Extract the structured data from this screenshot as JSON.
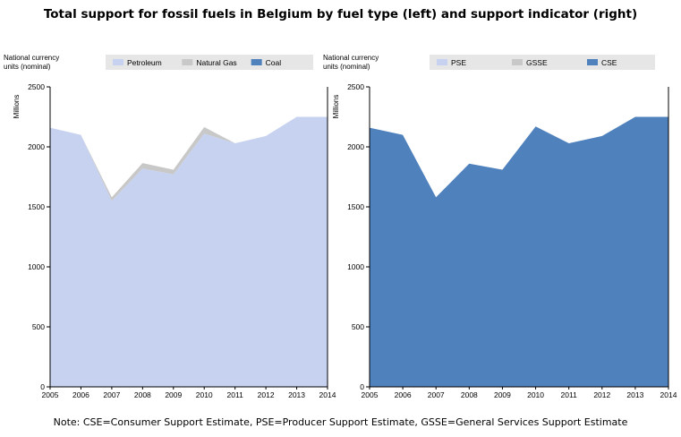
{
  "title": "Total support for fossil fuels in Belgium by fuel type (left) and support indicator (right)",
  "note": "Note: CSE=Consumer Support Estimate, PSE=Producer Support Estimate, GSSE=General Services Support Estimate",
  "colors": {
    "petroleum": "#c6d2f0",
    "natural_gas": "#c8c8c8",
    "coal": "#4f81bd",
    "pse": "#c6d2f0",
    "gsse": "#c8c8c8",
    "cse": "#4f81bd",
    "legend_bg": "#e6e6e6"
  },
  "chart_data": [
    {
      "type": "area",
      "ylabel_top": "National currency units (nominal)",
      "ylabel_side": "Millions",
      "ylim": [
        0,
        2500
      ],
      "yticks": [
        "0",
        "500",
        "1000",
        "1500",
        "2000",
        "2500"
      ],
      "x": [
        "2005",
        "2006",
        "2007",
        "2008",
        "2009",
        "2010",
        "2011",
        "2012",
        "2013",
        "2014"
      ],
      "legend_position": "top",
      "series": [
        {
          "name": "Petroleum",
          "color_key": "petroleum",
          "values": [
            2160,
            2100,
            1550,
            1820,
            1770,
            2110,
            2030,
            2090,
            2250,
            2250
          ]
        },
        {
          "name": "Natural Gas",
          "color_key": "natural_gas",
          "values": [
            0,
            0,
            30,
            45,
            40,
            55,
            0,
            0,
            0,
            0
          ]
        },
        {
          "name": "Coal",
          "color_key": "coal",
          "values": [
            0,
            0,
            0,
            0,
            0,
            0,
            0,
            0,
            0,
            0
          ]
        }
      ]
    },
    {
      "type": "area",
      "ylabel_top": "National currency units (nominal)",
      "ylabel_side": "Millions",
      "ylim": [
        0,
        2500
      ],
      "yticks": [
        "0",
        "500",
        "1000",
        "1500",
        "2000",
        "2500"
      ],
      "x": [
        "2005",
        "2006",
        "2007",
        "2008",
        "2009",
        "2010",
        "2011",
        "2012",
        "2013",
        "2014"
      ],
      "legend_position": "top",
      "series": [
        {
          "name": "PSE",
          "color_key": "pse",
          "values": [
            0,
            0,
            0,
            0,
            0,
            0,
            0,
            0,
            0,
            0
          ]
        },
        {
          "name": "GSSE",
          "color_key": "gsse",
          "values": [
            0,
            0,
            0,
            0,
            0,
            0,
            0,
            0,
            0,
            0
          ]
        },
        {
          "name": "CSE",
          "color_key": "cse",
          "values": [
            2160,
            2100,
            1580,
            1860,
            1810,
            2170,
            2030,
            2090,
            2250,
            2250
          ]
        }
      ]
    }
  ]
}
